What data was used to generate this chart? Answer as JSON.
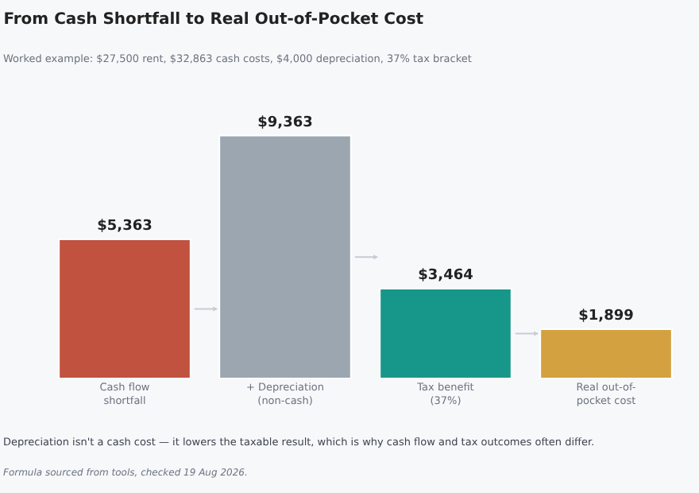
{
  "chart_data": {
    "type": "bar",
    "title": "From Cash Shortfall to Real Out-of-Pocket Cost",
    "subtitle": "Worked example: $27,500 rent, $32,863 cash costs, $4,000 depreciation, 37% tax bracket",
    "categories": [
      "Cash flow\nshortfall",
      "+ Depreciation\n(non-cash)",
      "Tax benefit\n(37%)",
      "Real out-of-\npocket cost"
    ],
    "values": [
      5363,
      9363,
      3464,
      1899
    ],
    "colors": [
      "#c0523f",
      "#9ca6b1",
      "#179789",
      "#d3a13f"
    ],
    "value_labels": [
      "$5,363",
      "$9,363",
      "$3,464",
      "$1,899"
    ],
    "annotations": [
      "Depreciation isn't a cash cost — it lowers the taxable result, which is why cash flow and tax outcomes often differ.",
      "Formula sourced from tools, checked 19 Aug 2026."
    ],
    "grid": false,
    "legend": false
  }
}
